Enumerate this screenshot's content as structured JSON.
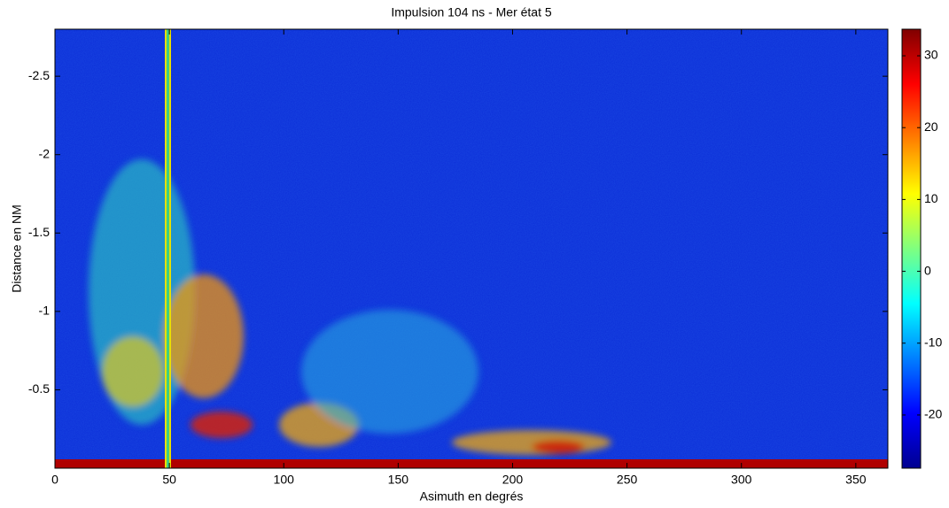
{
  "chart_data": {
    "type": "heatmap",
    "title": "Impulsion 104 ns - Mer état 5",
    "x_label": "Asimuth en degrés",
    "y_label": "Distance en NM",
    "xlim": [
      0,
      364
    ],
    "xticks": [
      0,
      50,
      100,
      150,
      200,
      250,
      300,
      350
    ],
    "ylim": [
      0,
      -2.8
    ],
    "yticks": [
      -2.5,
      -2,
      -1.5,
      -1,
      -0.5
    ],
    "colormap": "jet",
    "clim": [
      -27.4,
      33.7
    ],
    "cticks": [
      -20,
      -10,
      0,
      10,
      20,
      30
    ]
  }
}
